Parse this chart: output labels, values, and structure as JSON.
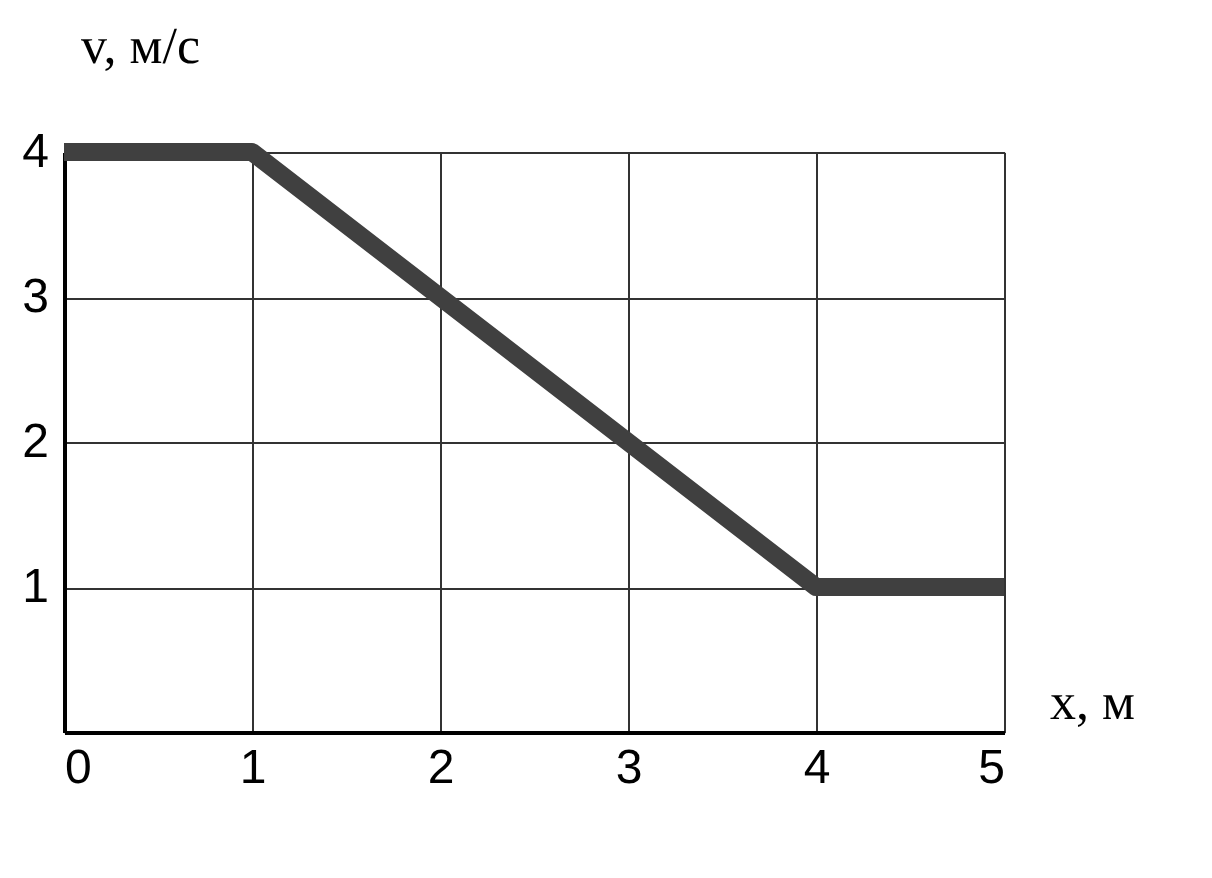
{
  "chart_data": {
    "type": "line",
    "xlabel": "x, м",
    "ylabel": "v, м/с",
    "x": [
      0,
      1,
      4,
      5
    ],
    "series": [
      {
        "color": "#404040",
        "values": [
          4,
          4,
          1,
          1
        ]
      }
    ],
    "xlim": [
      0,
      5
    ],
    "ylim": [
      0,
      4
    ],
    "xticks": [
      0,
      1,
      2,
      3,
      4,
      5
    ],
    "yticks": [
      1,
      2,
      3,
      4
    ],
    "grid": true,
    "marker": "none",
    "line_style": "solid"
  }
}
